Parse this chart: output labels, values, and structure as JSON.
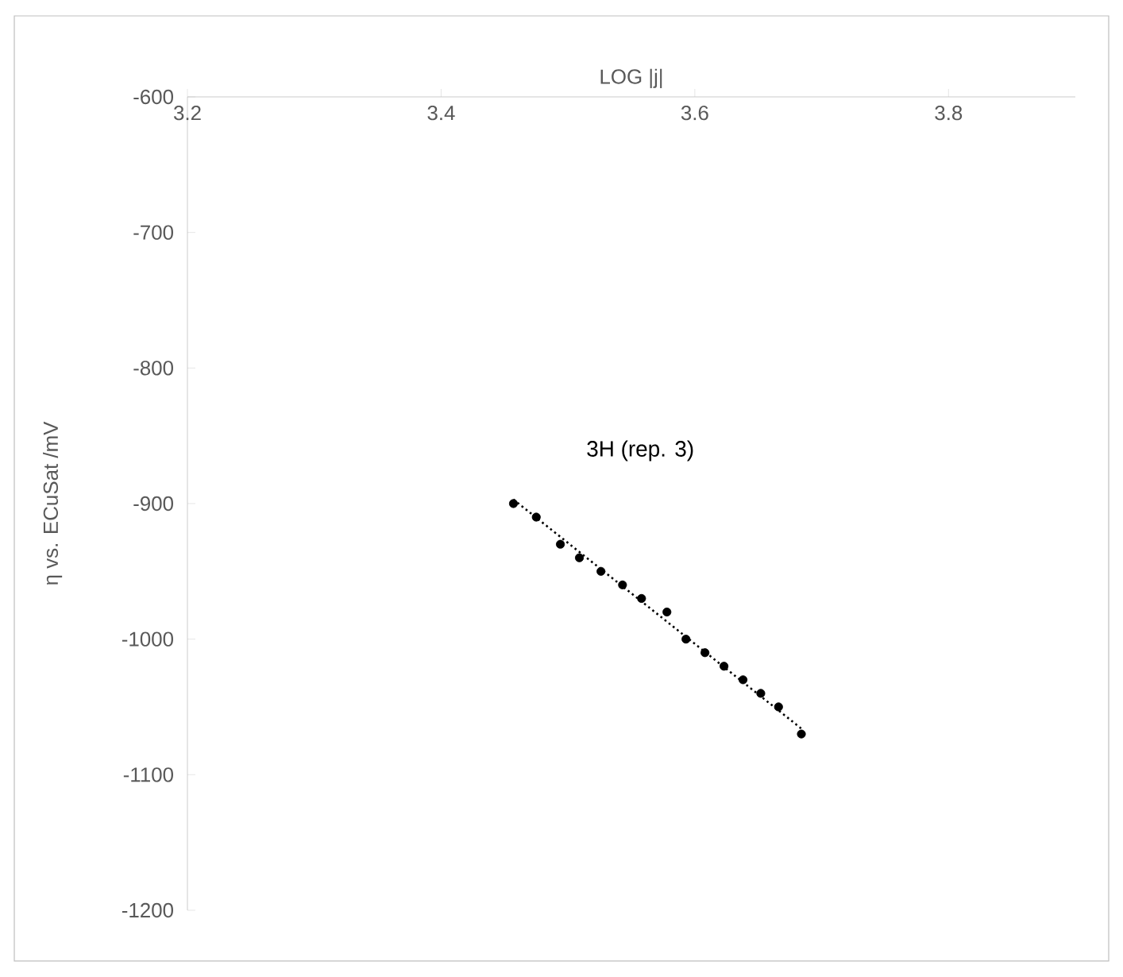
{
  "chart_data": {
    "type": "scatter",
    "xlabel": "LOG |j|",
    "ylabel": "η vs. ECuSat /mV",
    "annotations": [
      "3H (rep. 3)"
    ],
    "xlim": [
      3.2,
      3.9
    ],
    "xticks": [
      3.2,
      3.4,
      3.6,
      3.8
    ],
    "ylim": [
      -1200,
      -600
    ],
    "yticks": [
      -1200,
      -1100,
      -1000,
      -900,
      -800,
      -700,
      -600
    ],
    "marker": "circle",
    "series": [
      {
        "color": "#000000",
        "x": [
          3.457,
          3.475,
          3.494,
          3.509,
          3.526,
          3.543,
          3.558,
          3.578,
          3.593,
          3.608,
          3.623,
          3.638,
          3.652,
          3.666,
          3.684
        ],
        "values": [
          -900,
          -910,
          -930,
          -940,
          -950,
          -960,
          -970,
          -980,
          -1000,
          -1010,
          -1020,
          -1030,
          -1040,
          -1050,
          -1070
        ]
      },
      {
        "type": "line",
        "line_style": "dotted",
        "marker": "none",
        "color": "#000000",
        "x": [
          3.457,
          3.684
        ],
        "values": [
          -897,
          -1066
        ]
      }
    ]
  }
}
